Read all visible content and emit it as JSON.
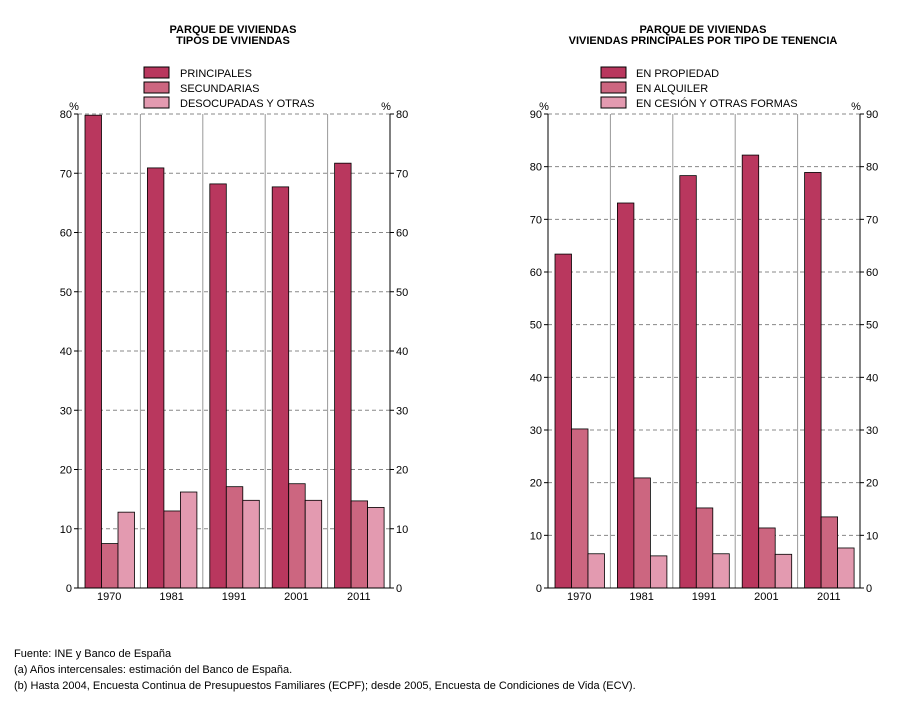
{
  "colors": {
    "series1": "#b9375e",
    "series2": "#cc6680",
    "series3": "#e39ab0",
    "grid": "#888888",
    "divider": "#999999"
  },
  "chart_data": [
    {
      "type": "bar",
      "title": [
        "PARQUE DE VIVIENDAS",
        "TIPOS DE VIVIENDAS"
      ],
      "unit_left": "%",
      "unit_right": "%",
      "categories": [
        "1970",
        "1981",
        "1991",
        "2001",
        "2011"
      ],
      "series": [
        {
          "name": "PRINCIPALES",
          "values": [
            79.8,
            70.9,
            68.2,
            67.7,
            71.7
          ]
        },
        {
          "name": "SECUNDARIAS",
          "values": [
            7.5,
            13.0,
            17.1,
            17.6,
            14.7
          ]
        },
        {
          "name": "DESOCUPADAS Y OTRAS",
          "values": [
            12.8,
            16.2,
            14.8,
            14.8,
            13.6
          ]
        }
      ],
      "ylim": [
        0,
        80
      ],
      "yticks": [
        0,
        10,
        20,
        30,
        40,
        50,
        60,
        70,
        80
      ],
      "grid": true,
      "legend": "top"
    },
    {
      "type": "bar",
      "title": [
        "PARQUE DE VIVIENDAS",
        "VIVIENDAS PRINCIPALES POR TIPO DE TENENCIA"
      ],
      "unit_left": "%",
      "unit_right": "%",
      "categories": [
        "1970",
        "1981",
        "1991",
        "2001",
        "2011"
      ],
      "series": [
        {
          "name": "EN PROPIEDAD",
          "values": [
            63.4,
            73.1,
            78.3,
            82.2,
            78.9
          ]
        },
        {
          "name": "EN ALQUILER",
          "values": [
            30.2,
            20.9,
            15.2,
            11.4,
            13.5
          ]
        },
        {
          "name": "EN CESIÓN Y OTRAS FORMAS",
          "values": [
            6.5,
            6.1,
            6.5,
            6.4,
            7.6
          ]
        }
      ],
      "ylim": [
        0,
        90
      ],
      "yticks": [
        0,
        10,
        20,
        30,
        40,
        50,
        60,
        70,
        80,
        90
      ],
      "grid": true,
      "legend": "top"
    }
  ],
  "footer": {
    "source": "Fuente: INE y Banco de España",
    "note_a": " (a) Años intercensales: estimación del Banco de España.",
    "note_b": " (b) Hasta 2004, Encuesta Continua de Presupuestos Familiares (ECPF); desde 2005, Encuesta de Condiciones de Vida (ECV)."
  }
}
